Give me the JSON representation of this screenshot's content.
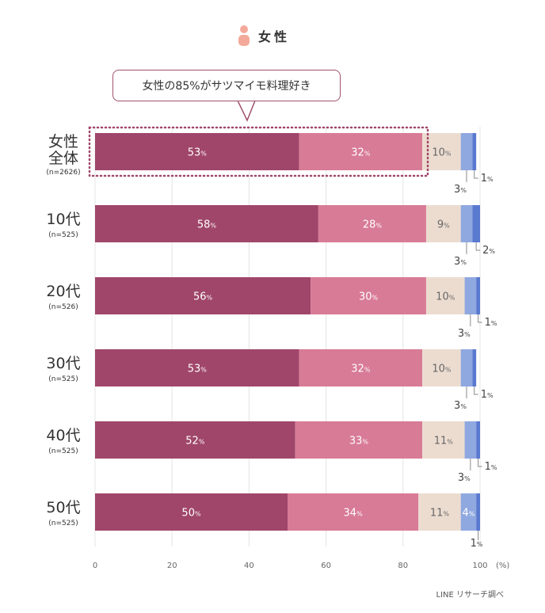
{
  "header": {
    "label": "女性"
  },
  "callout": {
    "text": "女性の85%がサツマイモ料理好き"
  },
  "source": "LINE リサーチ調べ",
  "chart_data": {
    "type": "bar",
    "orientation": "horizontal",
    "stacked": true,
    "categories": [
      {
        "label": "女性全体",
        "label_lines": [
          "女性",
          "全体"
        ],
        "n": "(n=2626)"
      },
      {
        "label": "10代",
        "label_lines": [
          "10代"
        ],
        "n": "(n=525)"
      },
      {
        "label": "20代",
        "label_lines": [
          "20代"
        ],
        "n": "(n=526)"
      },
      {
        "label": "30代",
        "label_lines": [
          "30代"
        ],
        "n": "(n=525)"
      },
      {
        "label": "40代",
        "label_lines": [
          "40代"
        ],
        "n": "(n=525)"
      },
      {
        "label": "50代",
        "label_lines": [
          "50代"
        ],
        "n": "(n=525)"
      }
    ],
    "series": [
      {
        "values": [
          53,
          58,
          56,
          53,
          52,
          50
        ],
        "color": "#a0466a"
      },
      {
        "values": [
          32,
          28,
          30,
          32,
          33,
          34
        ],
        "color": "#d87b97"
      },
      {
        "values": [
          10,
          9,
          10,
          10,
          11,
          11
        ],
        "color": "#ecdcd0"
      },
      {
        "values": [
          3,
          3,
          3,
          3,
          3,
          4
        ],
        "color": "#90a8e0"
      },
      {
        "values": [
          1,
          2,
          1,
          1,
          1,
          1
        ],
        "color": "#5a7ad0"
      }
    ],
    "xlim": [
      0,
      100
    ],
    "xticks": [
      0,
      20,
      40,
      60,
      80,
      100
    ],
    "xunit": "(%)",
    "value_suffix": "%",
    "highlight_category": 0,
    "grid": true
  }
}
